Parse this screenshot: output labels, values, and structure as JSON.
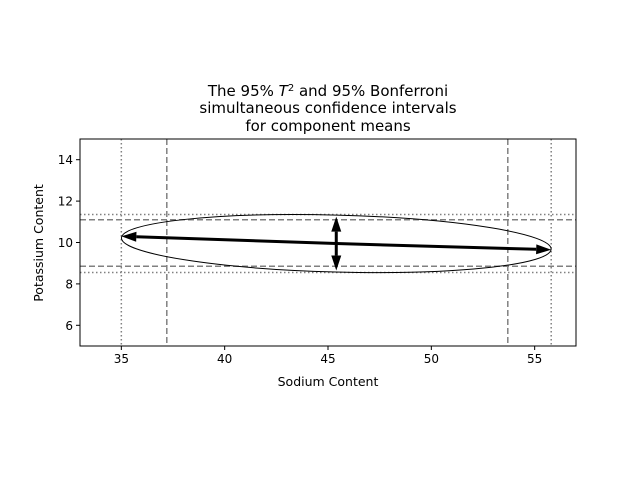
{
  "chart_data": {
    "type": "scatter",
    "title_line1_prefix": "The 95% ",
    "title_line1_t": "T",
    "title_line1_sup": "2",
    "title_line1_suffix": " and 95% Bonferroni",
    "title_line2": "simultaneous confidence intervals",
    "title_line3": "for component means",
    "xlabel": "Sodium Content",
    "ylabel": "Potassium Content",
    "xlim": [
      33,
      57
    ],
    "ylim": [
      5,
      15
    ],
    "xticks": [
      35,
      40,
      45,
      50,
      55
    ],
    "yticks": [
      6,
      8,
      10,
      12,
      14
    ],
    "grid": false,
    "ellipse": {
      "center": [
        45.4,
        9.95
      ],
      "x_extent": [
        35.0,
        55.8
      ],
      "y_extent": [
        8.6,
        11.35
      ],
      "rotation_deg": -1.5
    },
    "t2_intervals": {
      "sodium": [
        35.0,
        55.8
      ],
      "potassium": [
        8.55,
        11.35
      ]
    },
    "bonferroni_intervals": {
      "sodium": [
        37.2,
        53.7
      ],
      "potassium": [
        8.85,
        11.1
      ]
    },
    "axis_arrows": [
      {
        "from": [
          45.4,
          9.95
        ],
        "to": [
          35.0,
          10.3
        ]
      },
      {
        "from": [
          45.4,
          9.95
        ],
        "to": [
          55.8,
          9.65
        ]
      },
      {
        "from": [
          45.4,
          9.95
        ],
        "to": [
          45.4,
          11.25
        ]
      },
      {
        "from": [
          45.4,
          9.95
        ],
        "to": [
          45.4,
          8.65
        ]
      }
    ],
    "colors": {
      "ellipse": "#000000",
      "arrows": "#000000",
      "t2_lines": "#808080",
      "bonferroni_lines": "#808080"
    }
  }
}
